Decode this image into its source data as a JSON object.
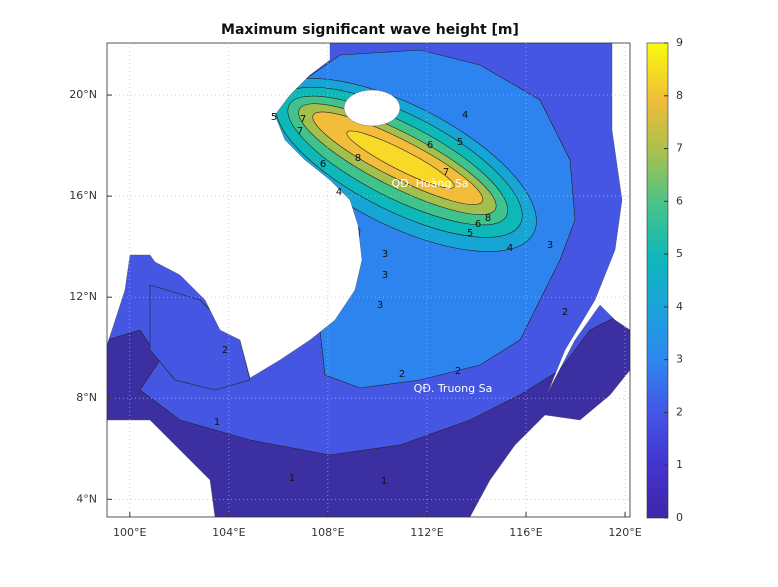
{
  "title": "Maximum significant wave height [m]",
  "map": {
    "xlim": [
      99.08,
      120.2
    ],
    "ylim": [
      3.3,
      22.06
    ],
    "xticks": [
      {
        "value": 100,
        "label": "100°E"
      },
      {
        "value": 104,
        "label": "104°E"
      },
      {
        "value": 108,
        "label": "108°E"
      },
      {
        "value": 112,
        "label": "112°E"
      },
      {
        "value": 116,
        "label": "116°E"
      },
      {
        "value": 120,
        "label": "120°E"
      }
    ],
    "yticks": [
      {
        "value": 4,
        "label": "4°N"
      },
      {
        "value": 8,
        "label": "8°N"
      },
      {
        "value": 12,
        "label": "12°N"
      },
      {
        "value": 16,
        "label": "16°N"
      },
      {
        "value": 20,
        "label": "20°N"
      }
    ],
    "grid": true
  },
  "annotations": [
    "QĐ. Hoàng Sa",
    "QĐ. Truong Sa"
  ],
  "contour_labels": [
    8,
    8,
    7,
    7,
    7,
    6,
    6,
    6,
    5,
    5,
    5,
    4,
    4,
    4,
    3,
    3,
    3,
    3,
    2,
    2,
    2,
    2,
    1,
    1,
    1
  ],
  "colorbar": {
    "lim": [
      0,
      9
    ],
    "ticks": [
      0,
      1,
      2,
      3,
      4,
      5,
      6,
      7,
      8,
      9
    ]
  }
}
